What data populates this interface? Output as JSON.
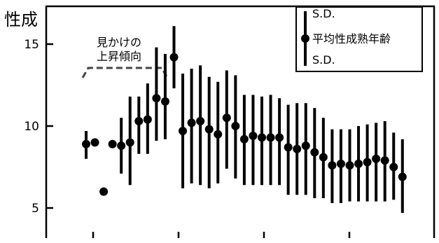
{
  "chart_data": {
    "type": "scatter",
    "title": "",
    "ylabel": "性成",
    "xlabel": "",
    "ylim": [
      3.0,
      16.8
    ],
    "yticks": [
      5,
      10,
      15
    ],
    "grid": false,
    "legend": {
      "placement": "top-right",
      "sd_top": "S.D.",
      "mean": "平均性成熟年齢",
      "sd_bottom": "S.D."
    },
    "annotation": {
      "line1": "見かけの",
      "line2": "上昇傾向"
    },
    "series": [
      {
        "x": [
          0,
          1,
          2,
          3,
          4,
          5,
          6,
          7,
          8,
          9,
          10,
          11,
          12,
          13,
          14,
          15,
          16,
          17,
          18,
          19,
          20,
          21,
          22,
          23,
          24,
          25,
          26,
          27,
          28,
          29,
          30,
          31,
          32,
          33,
          34,
          35,
          36
        ],
        "mean": [
          8.9,
          9.0,
          6.0,
          8.9,
          8.8,
          9.0,
          10.3,
          10.4,
          11.7,
          11.5,
          14.2,
          9.7,
          10.2,
          10.3,
          9.8,
          9.5,
          10.5,
          10.0,
          9.2,
          9.4,
          9.3,
          9.3,
          9.3,
          8.7,
          8.6,
          8.8,
          8.4,
          8.1,
          7.6,
          7.7,
          7.6,
          7.7,
          7.8,
          8.0,
          7.9,
          7.5,
          6.9
        ],
        "sd_low": [
          8.0,
          null,
          null,
          null,
          7.1,
          6.4,
          8.3,
          8.3,
          9.1,
          9.2,
          12.3,
          6.2,
          6.5,
          6.4,
          6.2,
          6.5,
          7.4,
          6.8,
          6.4,
          6.4,
          6.4,
          6.4,
          6.4,
          5.8,
          5.8,
          5.8,
          5.6,
          5.6,
          5.3,
          5.3,
          5.4,
          5.4,
          5.4,
          5.4,
          5.4,
          5.5,
          4.7
        ],
        "sd_high": [
          9.7,
          null,
          null,
          null,
          10.5,
          11.8,
          11.8,
          12.6,
          14.8,
          14.4,
          16.1,
          13.2,
          13.5,
          13.7,
          13.0,
          12.7,
          13.4,
          13.1,
          11.9,
          11.9,
          11.8,
          11.9,
          11.7,
          11.3,
          11.4,
          11.4,
          11.1,
          10.5,
          9.8,
          9.8,
          9.8,
          10.0,
          10.1,
          10.2,
          10.3,
          9.6,
          9.2
        ]
      }
    ]
  }
}
